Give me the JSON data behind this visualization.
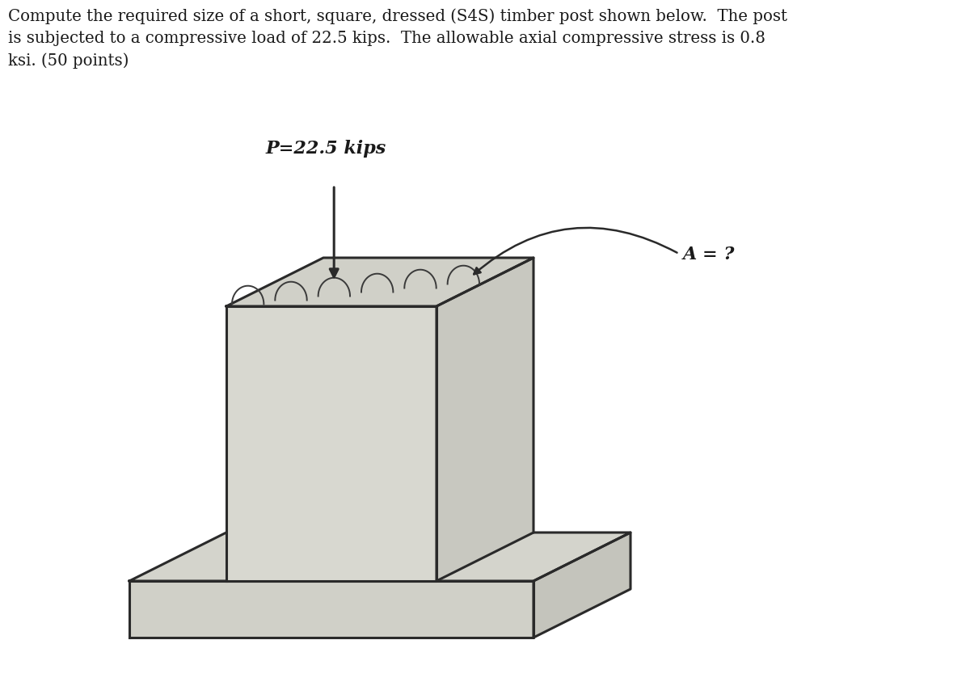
{
  "background_color": "#ffffff",
  "text_color": "#1a1a1a",
  "problem_text": "Compute the required size of a short, square, dressed (S4S) timber post shown below.  The post\nis subjected to a compressive load of 22.5 kips.  The allowable axial compressive stress is 0.8\nksi. (50 points)",
  "load_label": "P=22.5 kips",
  "area_label": "A = ?",
  "post_front_color": "#d8d8d0",
  "post_right_color": "#c8c8c0",
  "post_top_color": "#d0d0c8",
  "base_front_color": "#d0d0c8",
  "base_top_color": "#d4d4cc",
  "base_right_color": "#c4c4bc",
  "edge_color": "#2a2a2a",
  "hatch_color": "#3a3a3a",
  "arrow_color": "#2a2a2a",
  "edge_lw": 2.2,
  "hatch_lw": 1.4
}
